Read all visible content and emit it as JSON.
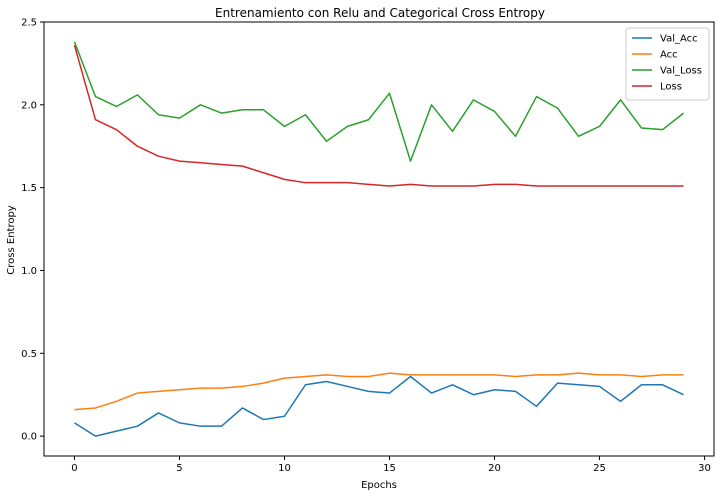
{
  "chart_data": {
    "type": "line",
    "title": "Entrenamiento con Relu and Categorical Cross Entropy",
    "xlabel": "Epochs",
    "ylabel": "Cross Entropy",
    "xlim": [
      -1.45,
      30.45
    ],
    "ylim": [
      -0.12,
      2.5
    ],
    "xticks": [
      0,
      5,
      10,
      15,
      20,
      25,
      30
    ],
    "yticks": [
      0.0,
      0.5,
      1.0,
      1.5,
      2.0,
      2.5
    ],
    "xtick_labels": [
      "0",
      "5",
      "10",
      "15",
      "20",
      "25",
      "30"
    ],
    "ytick_labels": [
      "0.0",
      "0.5",
      "1.0",
      "1.5",
      "2.0",
      "2.5"
    ],
    "grid": false,
    "legend_position": "top-right",
    "x": [
      0,
      1,
      2,
      3,
      4,
      5,
      6,
      7,
      8,
      9,
      10,
      11,
      12,
      13,
      14,
      15,
      16,
      17,
      18,
      19,
      20,
      21,
      22,
      23,
      24,
      25,
      26,
      27,
      28,
      29
    ],
    "series": [
      {
        "name": "Val_Acc",
        "color": "#1f77b4",
        "values": [
          0.08,
          0.0,
          0.03,
          0.06,
          0.14,
          0.08,
          0.06,
          0.06,
          0.17,
          0.1,
          0.12,
          0.31,
          0.33,
          0.3,
          0.27,
          0.26,
          0.36,
          0.26,
          0.31,
          0.25,
          0.28,
          0.27,
          0.18,
          0.32,
          0.31,
          0.3,
          0.21,
          0.31,
          0.31,
          0.25
        ]
      },
      {
        "name": "Acc",
        "color": "#ff7f0e",
        "values": [
          0.16,
          0.17,
          0.21,
          0.26,
          0.27,
          0.28,
          0.29,
          0.29,
          0.3,
          0.32,
          0.35,
          0.36,
          0.37,
          0.36,
          0.36,
          0.38,
          0.37,
          0.37,
          0.37,
          0.37,
          0.37,
          0.36,
          0.37,
          0.37,
          0.38,
          0.37,
          0.37,
          0.36,
          0.37,
          0.37
        ]
      },
      {
        "name": "Val_Loss",
        "color": "#2ca02c",
        "values": [
          2.38,
          2.05,
          1.99,
          2.06,
          1.94,
          1.92,
          2.0,
          1.95,
          1.97,
          1.97,
          1.87,
          1.94,
          1.78,
          1.87,
          1.91,
          2.07,
          1.66,
          2.0,
          1.84,
          2.03,
          1.96,
          1.81,
          2.05,
          1.98,
          1.81,
          1.87,
          2.03,
          1.86,
          1.85,
          1.95
        ]
      },
      {
        "name": "Loss",
        "color": "#d62728",
        "values": [
          2.36,
          1.91,
          1.85,
          1.75,
          1.69,
          1.66,
          1.65,
          1.64,
          1.63,
          1.59,
          1.55,
          1.53,
          1.53,
          1.53,
          1.52,
          1.51,
          1.52,
          1.51,
          1.51,
          1.51,
          1.52,
          1.52,
          1.51,
          1.51,
          1.51,
          1.51,
          1.51,
          1.51,
          1.51,
          1.51
        ]
      }
    ]
  }
}
